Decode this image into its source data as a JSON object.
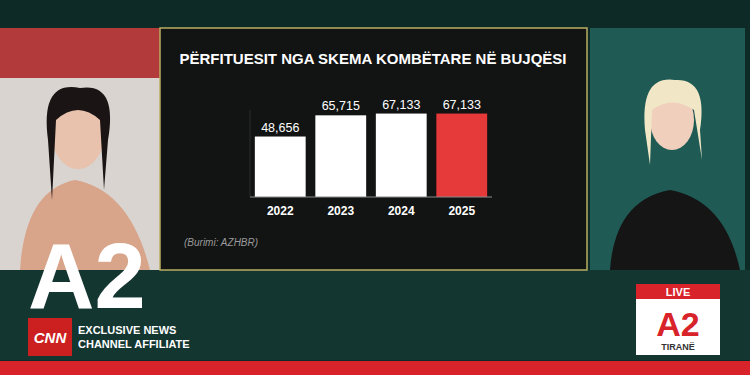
{
  "chart_data": {
    "type": "bar",
    "title": "PËRFITUESIT NGA SKEMA KOMBËTARE NË BUJQËSI",
    "subtitle": "(Burimi: AZHBR)",
    "categories": [
      "2022",
      "2023",
      "2024",
      "2025"
    ],
    "values": [
      48656,
      65715,
      67133,
      67133
    ],
    "value_labels": [
      "48,656",
      "65,715",
      "67,133",
      "67,133"
    ],
    "colors": [
      "#ffffff",
      "#ffffff",
      "#ffffff",
      "#e5393a"
    ],
    "ylim": [
      0,
      70000
    ],
    "grid": false,
    "data_labels": true,
    "tick_labels": "x"
  },
  "overlay": {
    "logo": "A2",
    "network": "CNN",
    "affiliate_line1": "EXCLUSIVE NEWS",
    "affiliate_line2": "CHANNEL AFFILIATE",
    "live": "LIVE",
    "live_logo": "A2",
    "city": "TIRANË"
  }
}
